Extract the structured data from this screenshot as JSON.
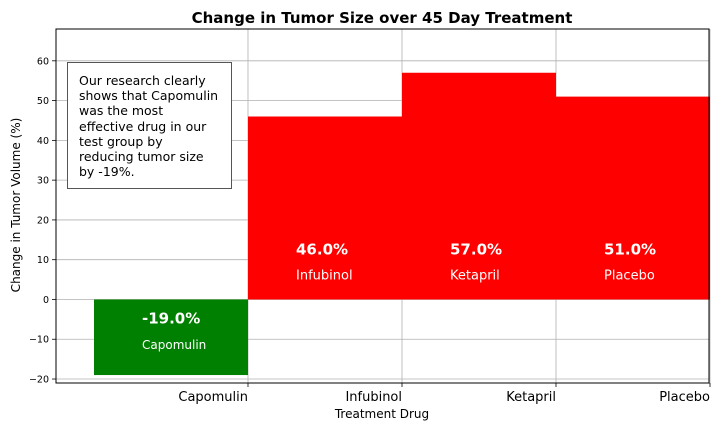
{
  "chart_data": {
    "type": "bar",
    "title": "Change in Tumor Size over 45 Day Treatment",
    "xlabel": "Treatment Drug",
    "ylabel": "Change in Tumor Volume (%)",
    "categories": [
      "Capomulin",
      "Infubinol",
      "Ketapril",
      "Placebo"
    ],
    "values": [
      -19.0,
      46.0,
      57.0,
      51.0
    ],
    "value_labels": [
      "-19.0%",
      "46.0%",
      "57.0%",
      "51.0%"
    ],
    "ylim": [
      -21,
      68
    ],
    "yticks": [
      -20,
      -10,
      0,
      10,
      20,
      30,
      40,
      50,
      60
    ],
    "ytick_labels": [
      "−20",
      "−10",
      "0",
      "10",
      "20",
      "30",
      "40",
      "50",
      "60"
    ],
    "grid": true,
    "annotation": "Our research clearly shows that Capomulin was the most effective drug in our test group by reducing tumor size by -19%.",
    "colors": {
      "positive": "#ff0000",
      "negative": "#008000",
      "grid": "#b0b0b0",
      "axis": "#000000"
    }
  }
}
